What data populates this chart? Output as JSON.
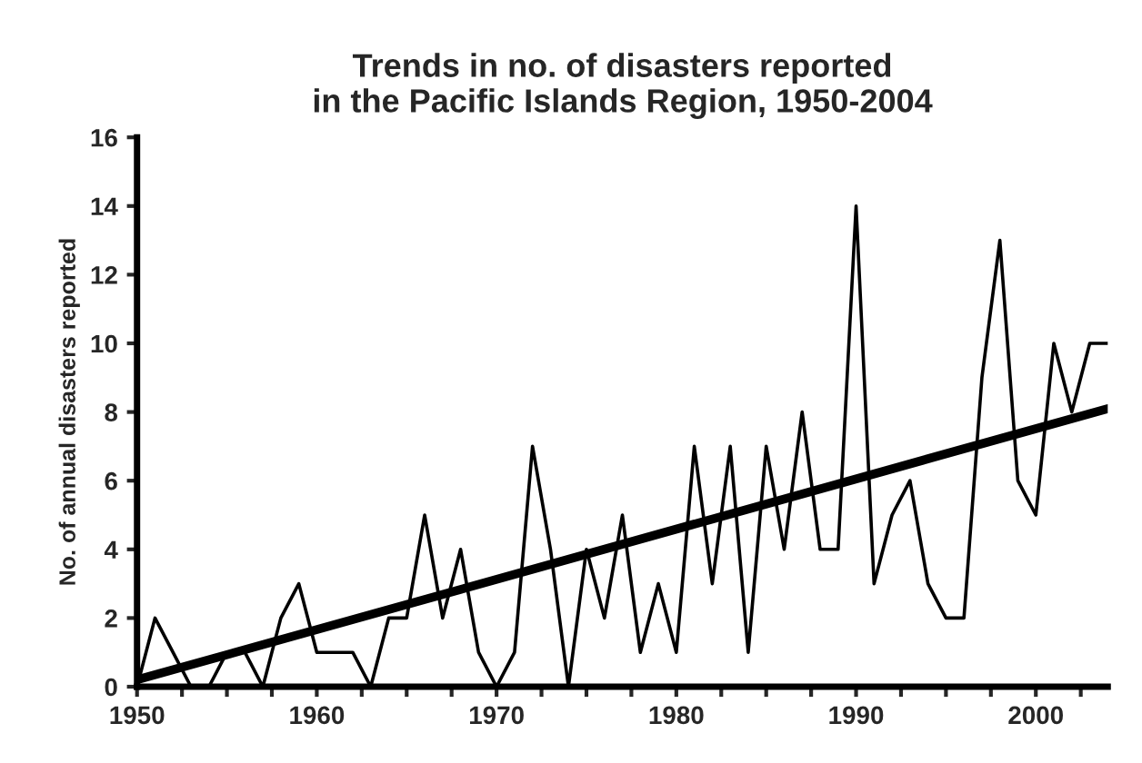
{
  "chart_data": {
    "type": "line",
    "title": "Trends in no. of disasters reported\nin the Pacific Islands Region, 1950-2004",
    "ylabel": "No. of annual disasters reported",
    "x": [
      1950,
      1951,
      1952,
      1953,
      1954,
      1955,
      1956,
      1957,
      1958,
      1959,
      1960,
      1961,
      1962,
      1963,
      1964,
      1965,
      1966,
      1967,
      1968,
      1969,
      1970,
      1971,
      1972,
      1973,
      1974,
      1975,
      1976,
      1977,
      1978,
      1979,
      1980,
      1981,
      1982,
      1983,
      1984,
      1985,
      1986,
      1987,
      1988,
      1989,
      1990,
      1991,
      1992,
      1993,
      1994,
      1995,
      1996,
      1997,
      1998,
      1999,
      2000,
      2001,
      2002,
      2003,
      2004
    ],
    "series": [
      {
        "color": "#000000",
        "values": [
          0,
          2,
          1,
          0,
          0,
          1,
          1,
          0,
          2,
          3,
          1,
          1,
          1,
          0,
          2,
          2,
          5,
          2,
          4,
          1,
          0,
          1,
          7,
          4,
          0,
          4,
          2,
          5,
          1,
          3,
          1,
          7,
          3,
          7,
          1,
          7,
          4,
          8,
          4,
          4,
          14,
          3,
          5,
          6,
          3,
          2,
          2,
          9,
          13,
          6,
          5,
          10,
          8,
          10,
          10
        ]
      },
      {
        "type": "line",
        "color": "#000000",
        "x": [
          1950,
          2004
        ],
        "values": [
          0.2,
          8.1
        ]
      }
    ],
    "xlim": [
      1950,
      2004
    ],
    "xticks": [
      1950,
      {
        "value": 1952.5,
        "label": null
      },
      {
        "value": 1955,
        "label": null
      },
      {
        "value": 1957.5,
        "label": null
      },
      1960,
      {
        "value": 1962.5,
        "label": null
      },
      {
        "value": 1965,
        "label": null
      },
      {
        "value": 1967.5,
        "label": null
      },
      1970,
      {
        "value": 1972.5,
        "label": null
      },
      {
        "value": 1975,
        "label": null
      },
      {
        "value": 1977.5,
        "label": null
      },
      1980,
      {
        "value": 1982.5,
        "label": null
      },
      {
        "value": 1985,
        "label": null
      },
      {
        "value": 1987.5,
        "label": null
      },
      1990,
      {
        "value": 1992.5,
        "label": null
      },
      {
        "value": 1995,
        "label": null
      },
      {
        "value": 1997.5,
        "label": null
      },
      2000,
      {
        "value": 2002.5,
        "label": null
      }
    ],
    "ylim": [
      0,
      16
    ],
    "yticks": [
      0,
      2,
      4,
      6,
      8,
      10,
      12,
      14,
      16
    ],
    "grid": false,
    "legend": false,
    "marker": "none"
  }
}
